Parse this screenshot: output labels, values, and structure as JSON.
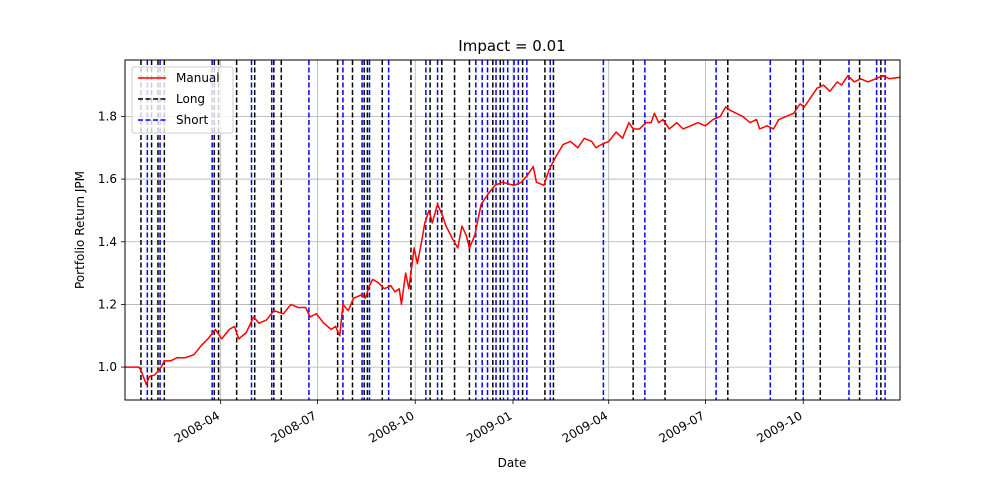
{
  "chart_data": {
    "type": "line",
    "title": "Impact = 0.01",
    "xlabel": "Date",
    "ylabel": "Portfolio Return JPM",
    "xlim": [
      "2008-01-02",
      "2009-12-31"
    ],
    "ylim": [
      0.895,
      1.98
    ],
    "grid": true,
    "legend_position": "upper-left",
    "x_ticks": [
      {
        "date": "2008-04-01",
        "label": "2008-04"
      },
      {
        "date": "2008-07-01",
        "label": "2008-07"
      },
      {
        "date": "2008-10-01",
        "label": "2008-10"
      },
      {
        "date": "2009-01-01",
        "label": "2009-01"
      },
      {
        "date": "2009-04-01",
        "label": "2009-04"
      },
      {
        "date": "2009-07-01",
        "label": "2009-07"
      },
      {
        "date": "2009-10-01",
        "label": "2009-10"
      }
    ],
    "y_ticks": [
      {
        "value": 1.0,
        "label": "1.0"
      },
      {
        "value": 1.2,
        "label": "1.2"
      },
      {
        "value": 1.4,
        "label": "1.4"
      },
      {
        "value": 1.6,
        "label": "1.6"
      },
      {
        "value": 1.8,
        "label": "1.8"
      }
    ],
    "legend": [
      {
        "label": "Manual",
        "color": "#ff0000",
        "style": "solid"
      },
      {
        "label": "Long",
        "color": "#000000",
        "style": "dashed"
      },
      {
        "label": "Short",
        "color": "#0000ff",
        "style": "dashed"
      }
    ],
    "series": [
      {
        "name": "Manual",
        "color": "#ff0000",
        "points": [
          [
            "2008-01-02",
            1.0
          ],
          [
            "2008-01-15",
            1.0
          ],
          [
            "2008-01-17",
            0.99
          ],
          [
            "2008-01-22",
            0.945
          ],
          [
            "2008-01-25",
            0.97
          ],
          [
            "2008-01-30",
            0.975
          ],
          [
            "2008-02-05",
            1.0
          ],
          [
            "2008-02-08",
            1.02
          ],
          [
            "2008-02-14",
            1.02
          ],
          [
            "2008-02-20",
            1.03
          ],
          [
            "2008-02-28",
            1.03
          ],
          [
            "2008-03-07",
            1.04
          ],
          [
            "2008-03-14",
            1.07
          ],
          [
            "2008-03-20",
            1.09
          ],
          [
            "2008-03-27",
            1.12
          ],
          [
            "2008-04-02",
            1.09
          ],
          [
            "2008-04-09",
            1.12
          ],
          [
            "2008-04-14",
            1.13
          ],
          [
            "2008-04-18",
            1.09
          ],
          [
            "2008-04-25",
            1.11
          ],
          [
            "2008-05-02",
            1.16
          ],
          [
            "2008-05-07",
            1.14
          ],
          [
            "2008-05-14",
            1.15
          ],
          [
            "2008-05-21",
            1.18
          ],
          [
            "2008-05-30",
            1.17
          ],
          [
            "2008-06-06",
            1.2
          ],
          [
            "2008-06-13",
            1.19
          ],
          [
            "2008-06-20",
            1.19
          ],
          [
            "2008-06-24",
            1.16
          ],
          [
            "2008-06-30",
            1.17
          ],
          [
            "2008-07-07",
            1.14
          ],
          [
            "2008-07-14",
            1.12
          ],
          [
            "2008-07-18",
            1.13
          ],
          [
            "2008-07-22",
            1.1
          ],
          [
            "2008-07-25",
            1.2
          ],
          [
            "2008-07-30",
            1.18
          ],
          [
            "2008-08-04",
            1.22
          ],
          [
            "2008-08-11",
            1.23
          ],
          [
            "2008-08-15",
            1.22
          ],
          [
            "2008-08-19",
            1.26
          ],
          [
            "2008-08-22",
            1.28
          ],
          [
            "2008-08-27",
            1.27
          ],
          [
            "2008-09-02",
            1.25
          ],
          [
            "2008-09-08",
            1.26
          ],
          [
            "2008-09-12",
            1.24
          ],
          [
            "2008-09-16",
            1.25
          ],
          [
            "2008-09-18",
            1.2
          ],
          [
            "2008-09-22",
            1.3
          ],
          [
            "2008-09-25",
            1.25
          ],
          [
            "2008-09-30",
            1.38
          ],
          [
            "2008-10-03",
            1.33
          ],
          [
            "2008-10-07",
            1.4
          ],
          [
            "2008-10-10",
            1.46
          ],
          [
            "2008-10-14",
            1.5
          ],
          [
            "2008-10-17",
            1.46
          ],
          [
            "2008-10-22",
            1.52
          ],
          [
            "2008-10-27",
            1.48
          ],
          [
            "2008-10-30",
            1.45
          ],
          [
            "2008-11-05",
            1.41
          ],
          [
            "2008-11-10",
            1.38
          ],
          [
            "2008-11-14",
            1.45
          ],
          [
            "2008-11-18",
            1.42
          ],
          [
            "2008-11-21",
            1.38
          ],
          [
            "2008-11-26",
            1.42
          ],
          [
            "2008-12-02",
            1.52
          ],
          [
            "2008-12-08",
            1.55
          ],
          [
            "2008-12-15",
            1.58
          ],
          [
            "2008-12-22",
            1.59
          ],
          [
            "2009-01-02",
            1.58
          ],
          [
            "2009-01-09",
            1.59
          ],
          [
            "2009-01-14",
            1.61
          ],
          [
            "2009-01-20",
            1.64
          ],
          [
            "2009-01-23",
            1.59
          ],
          [
            "2009-01-30",
            1.58
          ],
          [
            "2009-02-04",
            1.63
          ],
          [
            "2009-02-10",
            1.67
          ],
          [
            "2009-02-17",
            1.71
          ],
          [
            "2009-02-24",
            1.72
          ],
          [
            "2009-03-03",
            1.7
          ],
          [
            "2009-03-09",
            1.73
          ],
          [
            "2009-03-16",
            1.72
          ],
          [
            "2009-03-20",
            1.7
          ],
          [
            "2009-03-25",
            1.71
          ],
          [
            "2009-04-01",
            1.72
          ],
          [
            "2009-04-08",
            1.75
          ],
          [
            "2009-04-14",
            1.73
          ],
          [
            "2009-04-20",
            1.78
          ],
          [
            "2009-04-24",
            1.76
          ],
          [
            "2009-04-30",
            1.76
          ],
          [
            "2009-05-06",
            1.78
          ],
          [
            "2009-05-11",
            1.78
          ],
          [
            "2009-05-14",
            1.81
          ],
          [
            "2009-05-18",
            1.78
          ],
          [
            "2009-05-22",
            1.79
          ],
          [
            "2009-05-28",
            1.76
          ],
          [
            "2009-06-04",
            1.78
          ],
          [
            "2009-06-10",
            1.76
          ],
          [
            "2009-06-17",
            1.77
          ],
          [
            "2009-06-24",
            1.78
          ],
          [
            "2009-07-01",
            1.77
          ],
          [
            "2009-07-08",
            1.79
          ],
          [
            "2009-07-15",
            1.8
          ],
          [
            "2009-07-20",
            1.83
          ],
          [
            "2009-07-24",
            1.82
          ],
          [
            "2009-07-30",
            1.81
          ],
          [
            "2009-08-05",
            1.8
          ],
          [
            "2009-08-12",
            1.78
          ],
          [
            "2009-08-18",
            1.79
          ],
          [
            "2009-08-21",
            1.76
          ],
          [
            "2009-08-28",
            1.77
          ],
          [
            "2009-09-03",
            1.76
          ],
          [
            "2009-09-08",
            1.79
          ],
          [
            "2009-09-15",
            1.8
          ],
          [
            "2009-09-22",
            1.81
          ],
          [
            "2009-09-28",
            1.84
          ],
          [
            "2009-10-02",
            1.83
          ],
          [
            "2009-10-08",
            1.86
          ],
          [
            "2009-10-14",
            1.89
          ],
          [
            "2009-10-20",
            1.9
          ],
          [
            "2009-10-26",
            1.88
          ],
          [
            "2009-11-02",
            1.91
          ],
          [
            "2009-11-06",
            1.9
          ],
          [
            "2009-11-12",
            1.93
          ],
          [
            "2009-11-18",
            1.91
          ],
          [
            "2009-11-24",
            1.92
          ],
          [
            "2009-12-01",
            1.91
          ],
          [
            "2009-12-08",
            1.92
          ],
          [
            "2009-12-15",
            1.93
          ],
          [
            "2009-12-21",
            1.92
          ],
          [
            "2009-12-31",
            1.925
          ]
        ]
      }
    ],
    "long_entries": {
      "color": "#000000",
      "dates": [
        "2008-01-17",
        "2008-01-27",
        "2008-02-02",
        "2008-02-08",
        "2008-03-26",
        "2008-03-30",
        "2008-04-16",
        "2008-05-03",
        "2008-05-21",
        "2008-05-28",
        "2008-07-20",
        "2008-08-03",
        "2008-08-14",
        "2008-08-17",
        "2008-08-31",
        "2008-09-27",
        "2008-10-15",
        "2008-10-26",
        "2008-11-07",
        "2008-11-21",
        "2008-12-13",
        "2008-12-20",
        "2009-01-10",
        "2009-01-31",
        "2009-02-08",
        "2009-04-24",
        "2009-05-24",
        "2009-07-22",
        "2009-09-24",
        "2009-10-17",
        "2009-11-23",
        "2009-12-13"
      ]
    },
    "short_entries": {
      "color": "#0000ff",
      "dates": [
        "2008-01-23",
        "2008-02-04",
        "2008-03-24",
        "2008-04-30",
        "2008-05-19",
        "2008-06-23",
        "2008-07-25",
        "2008-08-12",
        "2008-08-19",
        "2008-09-06",
        "2008-10-11",
        "2008-10-22",
        "2008-11-27",
        "2008-12-03",
        "2008-12-08",
        "2008-12-16",
        "2008-12-23",
        "2008-12-27",
        "2009-01-02",
        "2009-01-06",
        "2009-01-14",
        "2009-02-05",
        "2009-03-27",
        "2009-05-05",
        "2009-07-11",
        "2009-08-31",
        "2009-10-01",
        "2009-11-13",
        "2009-12-09",
        "2009-12-17"
      ]
    }
  }
}
